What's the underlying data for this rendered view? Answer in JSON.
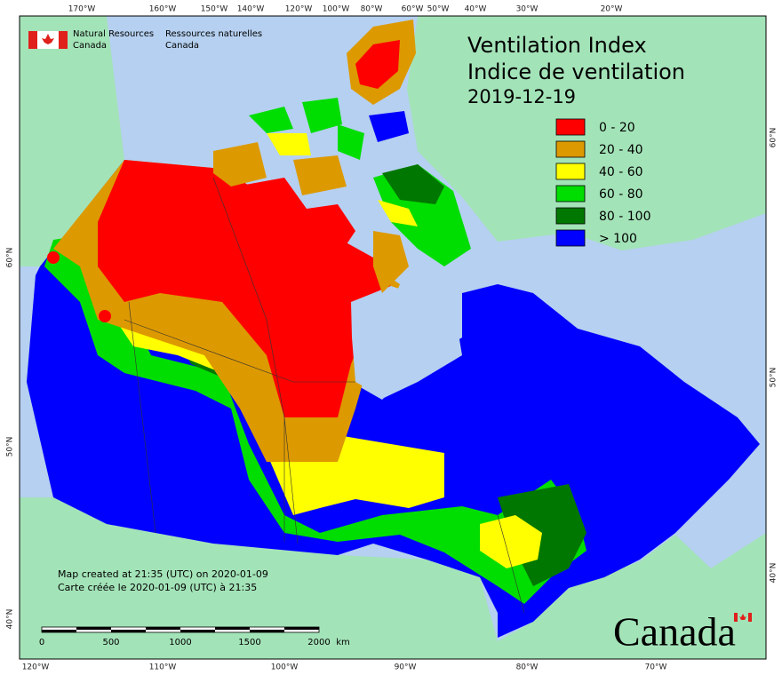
{
  "agency": {
    "en_line1": "Natural Resources",
    "en_line2": "Canada",
    "fr_line1": "Ressources naturelles",
    "fr_line2": "Canada"
  },
  "header": {
    "title_en": "Ventilation Index",
    "title_fr": "Indice de ventilation",
    "date": "2019-12-19"
  },
  "legend": [
    {
      "label": "0 - 20",
      "color": "#ff0000"
    },
    {
      "label": "20 - 40",
      "color": "#dd9900"
    },
    {
      "label": "40 - 60",
      "color": "#ffff00"
    },
    {
      "label": "60 - 80",
      "color": "#00dd00"
    },
    {
      "label": "80 - 100",
      "color": "#007700"
    },
    {
      "label": "> 100",
      "color": "#0000ff"
    }
  ],
  "footer": {
    "created_en": "Map created at 21:35 (UTC) on 2020-01-09",
    "created_fr": "Carte créée le 2020-01-09 (UTC) à 21:35"
  },
  "scale_bar": {
    "labels": [
      "0",
      "500",
      "1000",
      "1500",
      "2000"
    ],
    "unit": "km"
  },
  "graticule": {
    "top": [
      "170°W",
      "160°W",
      "150°W",
      "140°W",
      "120°W",
      "100°W",
      "80°W",
      "60°W",
      "50°W",
      "40°W",
      "30°W",
      "20°W"
    ],
    "bottom": [
      "120°W",
      "110°W",
      "100°W",
      "90°W",
      "80°W",
      "70°W"
    ],
    "left": [
      "60°N",
      "50°N",
      "40°N"
    ],
    "right": [
      "60°N",
      "50°N",
      "40°N"
    ]
  },
  "wordmark": "Canada"
}
